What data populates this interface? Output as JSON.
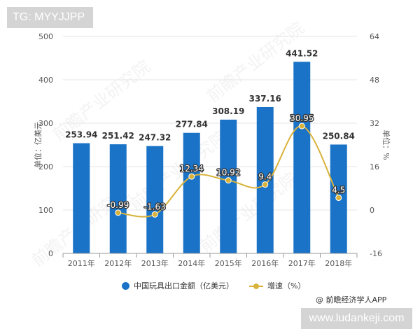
{
  "tag_label": "TG: MYYJJPP",
  "site_label": "www.ludankeji.com",
  "source_label": "@ 前瞻经济学人APP",
  "watermark": "前瞻产业研究院",
  "colors": {
    "bar": "#1a73c7",
    "line": "#d9b23a",
    "axis_text": "#555555",
    "grid": "#e6e6e6"
  },
  "chart_data": {
    "type": "bar",
    "categories": [
      "2011年",
      "2012年",
      "2013年",
      "2014年",
      "2015年",
      "2016年",
      "2017年",
      "2018年"
    ],
    "series": [
      {
        "name": "中国玩具出口金额（亿美元）",
        "type": "bar",
        "axis": "left",
        "values": [
          253.94,
          251.42,
          247.32,
          277.84,
          308.19,
          337.16,
          441.52,
          250.84
        ],
        "labels": [
          "253.94",
          "251.42",
          "247.32",
          "277.84",
          "308.19",
          "337.16",
          "441.52",
          "250.84"
        ]
      },
      {
        "name": "增速（%）",
        "type": "line",
        "axis": "right",
        "values": [
          null,
          -0.99,
          -1.63,
          12.34,
          10.92,
          9.4,
          30.95,
          4.5
        ],
        "labels": [
          "",
          "-0.99",
          "-1.63",
          "12.34",
          "10.92",
          "9.4",
          "30.95",
          "4.5"
        ]
      }
    ],
    "ylabel": "单位：亿美元",
    "ylabel_right": "单位：%",
    "ylim": [
      0,
      500
    ],
    "yticks": [
      "0",
      "100",
      "200",
      "300",
      "400",
      "500"
    ],
    "ylim_right": [
      -16,
      64
    ],
    "yticks_right": [
      "-16",
      "0",
      "16",
      "32",
      "48",
      "64"
    ],
    "grid": true,
    "legend_position": "bottom"
  }
}
